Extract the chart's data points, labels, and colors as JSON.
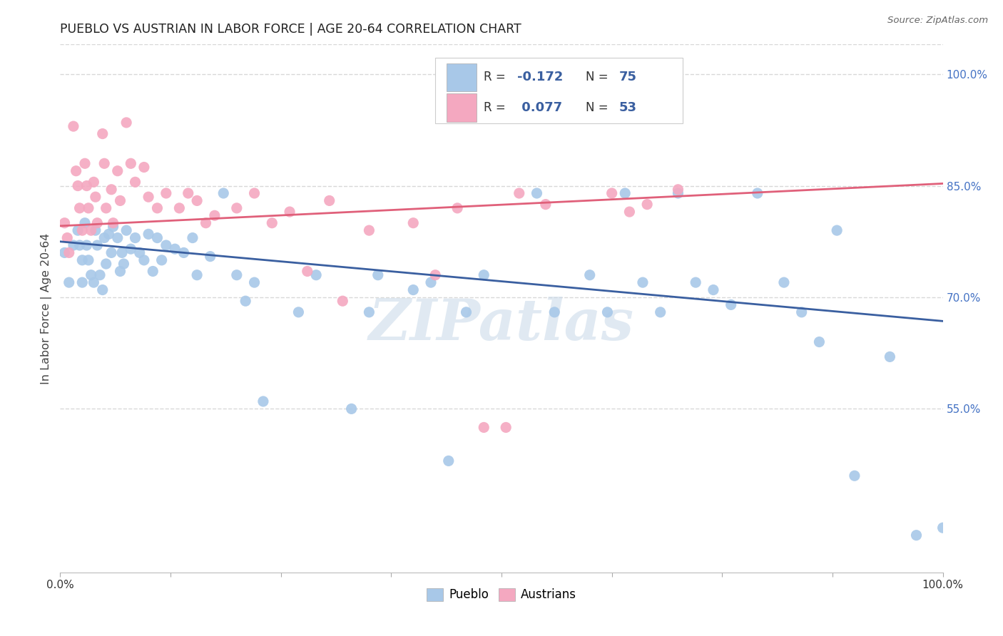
{
  "title": "PUEBLO VS AUSTRIAN IN LABOR FORCE | AGE 20-64 CORRELATION CHART",
  "source": "Source: ZipAtlas.com",
  "ylabel": "In Labor Force | Age 20-64",
  "xlim": [
    0,
    1
  ],
  "ylim": [
    0.33,
    1.04
  ],
  "y_tick_positions_right": [
    1.0,
    0.85,
    0.7,
    0.55
  ],
  "y_tick_labels_right": [
    "100.0%",
    "85.0%",
    "70.0%",
    "55.0%"
  ],
  "pueblo_color": "#a8c8e8",
  "austrian_color": "#f4a8c0",
  "pueblo_line_color": "#3a5fa0",
  "austrian_line_color": "#e0607a",
  "legend_R_pueblo": "-0.172",
  "legend_N_pueblo": "75",
  "legend_R_austrian": "0.077",
  "legend_N_austrian": "53",
  "legend_pueblo_label": "Pueblo",
  "legend_austrian_label": "Austrians",
  "watermark": "ZIPatlas",
  "pueblo_x": [
    0.005,
    0.01,
    0.015,
    0.02,
    0.022,
    0.025,
    0.025,
    0.028,
    0.03,
    0.032,
    0.035,
    0.038,
    0.04,
    0.042,
    0.045,
    0.048,
    0.05,
    0.052,
    0.055,
    0.058,
    0.06,
    0.065,
    0.068,
    0.07,
    0.072,
    0.075,
    0.08,
    0.085,
    0.09,
    0.095,
    0.1,
    0.105,
    0.11,
    0.115,
    0.12,
    0.13,
    0.14,
    0.15,
    0.155,
    0.17,
    0.185,
    0.2,
    0.21,
    0.22,
    0.23,
    0.27,
    0.29,
    0.33,
    0.35,
    0.36,
    0.4,
    0.42,
    0.44,
    0.46,
    0.48,
    0.54,
    0.56,
    0.6,
    0.62,
    0.64,
    0.66,
    0.68,
    0.7,
    0.72,
    0.74,
    0.76,
    0.79,
    0.82,
    0.84,
    0.86,
    0.88,
    0.9,
    0.94,
    0.97,
    1.0
  ],
  "pueblo_y": [
    0.76,
    0.72,
    0.77,
    0.79,
    0.77,
    0.75,
    0.72,
    0.8,
    0.77,
    0.75,
    0.73,
    0.72,
    0.79,
    0.77,
    0.73,
    0.71,
    0.78,
    0.745,
    0.785,
    0.76,
    0.795,
    0.78,
    0.735,
    0.76,
    0.745,
    0.79,
    0.765,
    0.78,
    0.76,
    0.75,
    0.785,
    0.735,
    0.78,
    0.75,
    0.77,
    0.765,
    0.76,
    0.78,
    0.73,
    0.755,
    0.84,
    0.73,
    0.695,
    0.72,
    0.56,
    0.68,
    0.73,
    0.55,
    0.68,
    0.73,
    0.71,
    0.72,
    0.48,
    0.68,
    0.73,
    0.84,
    0.68,
    0.73,
    0.68,
    0.84,
    0.72,
    0.68,
    0.84,
    0.72,
    0.71,
    0.69,
    0.84,
    0.72,
    0.68,
    0.64,
    0.79,
    0.46,
    0.62,
    0.38,
    0.39
  ],
  "austrian_x": [
    0.005,
    0.008,
    0.01,
    0.015,
    0.018,
    0.02,
    0.022,
    0.025,
    0.028,
    0.03,
    0.032,
    0.035,
    0.038,
    0.04,
    0.042,
    0.048,
    0.05,
    0.052,
    0.058,
    0.06,
    0.065,
    0.068,
    0.075,
    0.08,
    0.085,
    0.095,
    0.1,
    0.11,
    0.12,
    0.135,
    0.145,
    0.155,
    0.165,
    0.175,
    0.2,
    0.22,
    0.24,
    0.26,
    0.28,
    0.305,
    0.32,
    0.35,
    0.4,
    0.425,
    0.45,
    0.48,
    0.505,
    0.52,
    0.55,
    0.625,
    0.645,
    0.665,
    0.7
  ],
  "austrian_y": [
    0.8,
    0.78,
    0.76,
    0.93,
    0.87,
    0.85,
    0.82,
    0.79,
    0.88,
    0.85,
    0.82,
    0.79,
    0.855,
    0.835,
    0.8,
    0.92,
    0.88,
    0.82,
    0.845,
    0.8,
    0.87,
    0.83,
    0.935,
    0.88,
    0.855,
    0.875,
    0.835,
    0.82,
    0.84,
    0.82,
    0.84,
    0.83,
    0.8,
    0.81,
    0.82,
    0.84,
    0.8,
    0.815,
    0.735,
    0.83,
    0.695,
    0.79,
    0.8,
    0.73,
    0.82,
    0.525,
    0.525,
    0.84,
    0.825,
    0.84,
    0.815,
    0.825,
    0.845
  ],
  "pueblo_trend": [
    0.775,
    0.668
  ],
  "austrian_trend_x": [
    0.0,
    1.0
  ],
  "austrian_trend_y": [
    0.796,
    0.853
  ],
  "background_color": "#ffffff",
  "grid_color": "#d8d8d8"
}
